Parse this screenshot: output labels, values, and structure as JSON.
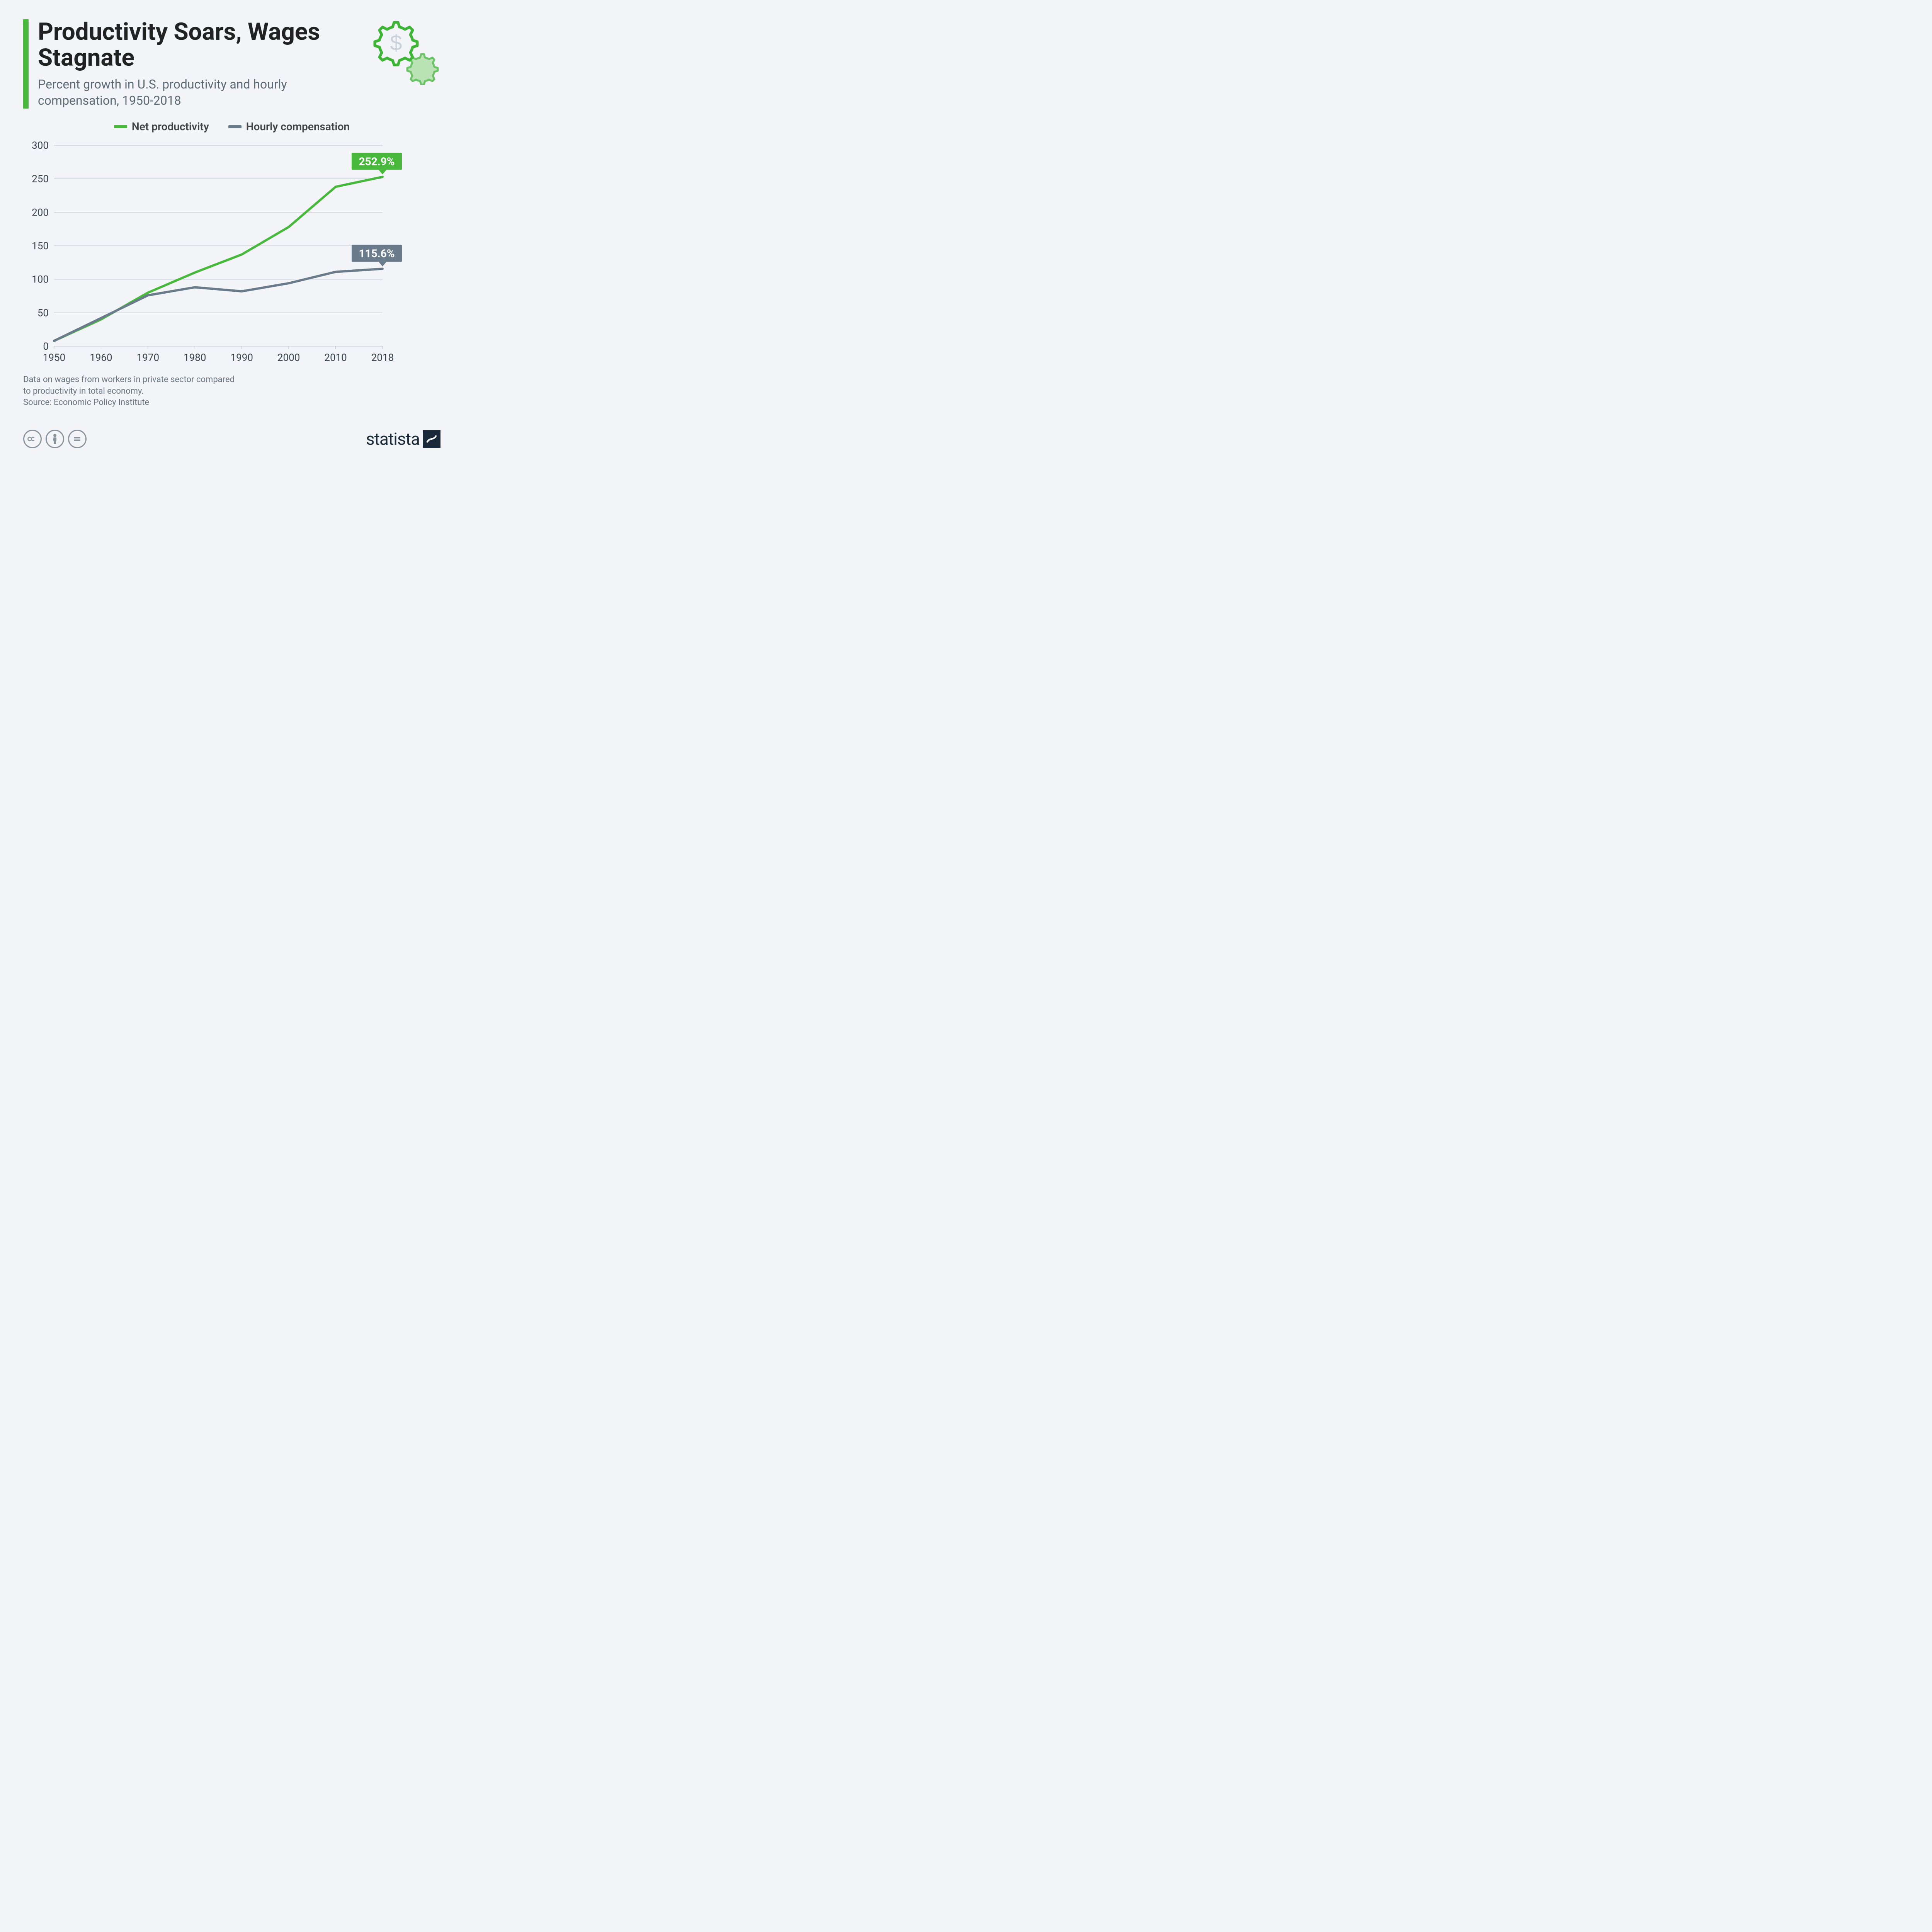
{
  "header": {
    "title": "Productivity Soars, Wages Stagnate",
    "subtitle": "Percent growth in U.S. productivity and hourly compensation, 1950-2018",
    "accent_color": "#48b93c"
  },
  "icon": {
    "gear_stroke": "#3fb536",
    "gear_fill_light": "#a9dca0",
    "dollar_stroke": "#c9d2da"
  },
  "legend": {
    "items": [
      {
        "label": "Net productivity",
        "color": "#48b93c"
      },
      {
        "label": "Hourly compensation",
        "color": "#6a7c8c"
      }
    ]
  },
  "chart": {
    "type": "line",
    "background_color": "#f2f4f7",
    "grid_color": "#b9c2cb",
    "axis_label_color": "#3a4650",
    "axis_fontsize": 26,
    "ylim": [
      0,
      300
    ],
    "ytick_step": 50,
    "yticks": [
      0,
      50,
      100,
      150,
      200,
      250,
      300
    ],
    "x_categories": [
      "1950",
      "1960",
      "1970",
      "1980",
      "1990",
      "2000",
      "2010",
      "2018"
    ],
    "line_width": 6,
    "series": [
      {
        "name": "Net productivity",
        "color": "#48b93c",
        "values": [
          8,
          40,
          80,
          110,
          137,
          178,
          238,
          252.9
        ],
        "end_label": "252.9%",
        "end_label_bg": "#48b93c",
        "end_label_text": "#ffffff"
      },
      {
        "name": "Hourly compensation",
        "color": "#6a7c8c",
        "values": [
          8,
          42,
          76,
          88,
          82,
          94,
          111,
          115.6
        ],
        "end_label": "115.6%",
        "end_label_bg": "#6a7c8c",
        "end_label_text": "#ffffff"
      }
    ]
  },
  "footnote": {
    "line1": "Data on wages from workers in private sector compared",
    "line2": "to productivity in total economy.",
    "source": "Source: Economic Policy Institute"
  },
  "footer": {
    "brand": "statista",
    "cc_color": "#8a949e"
  }
}
